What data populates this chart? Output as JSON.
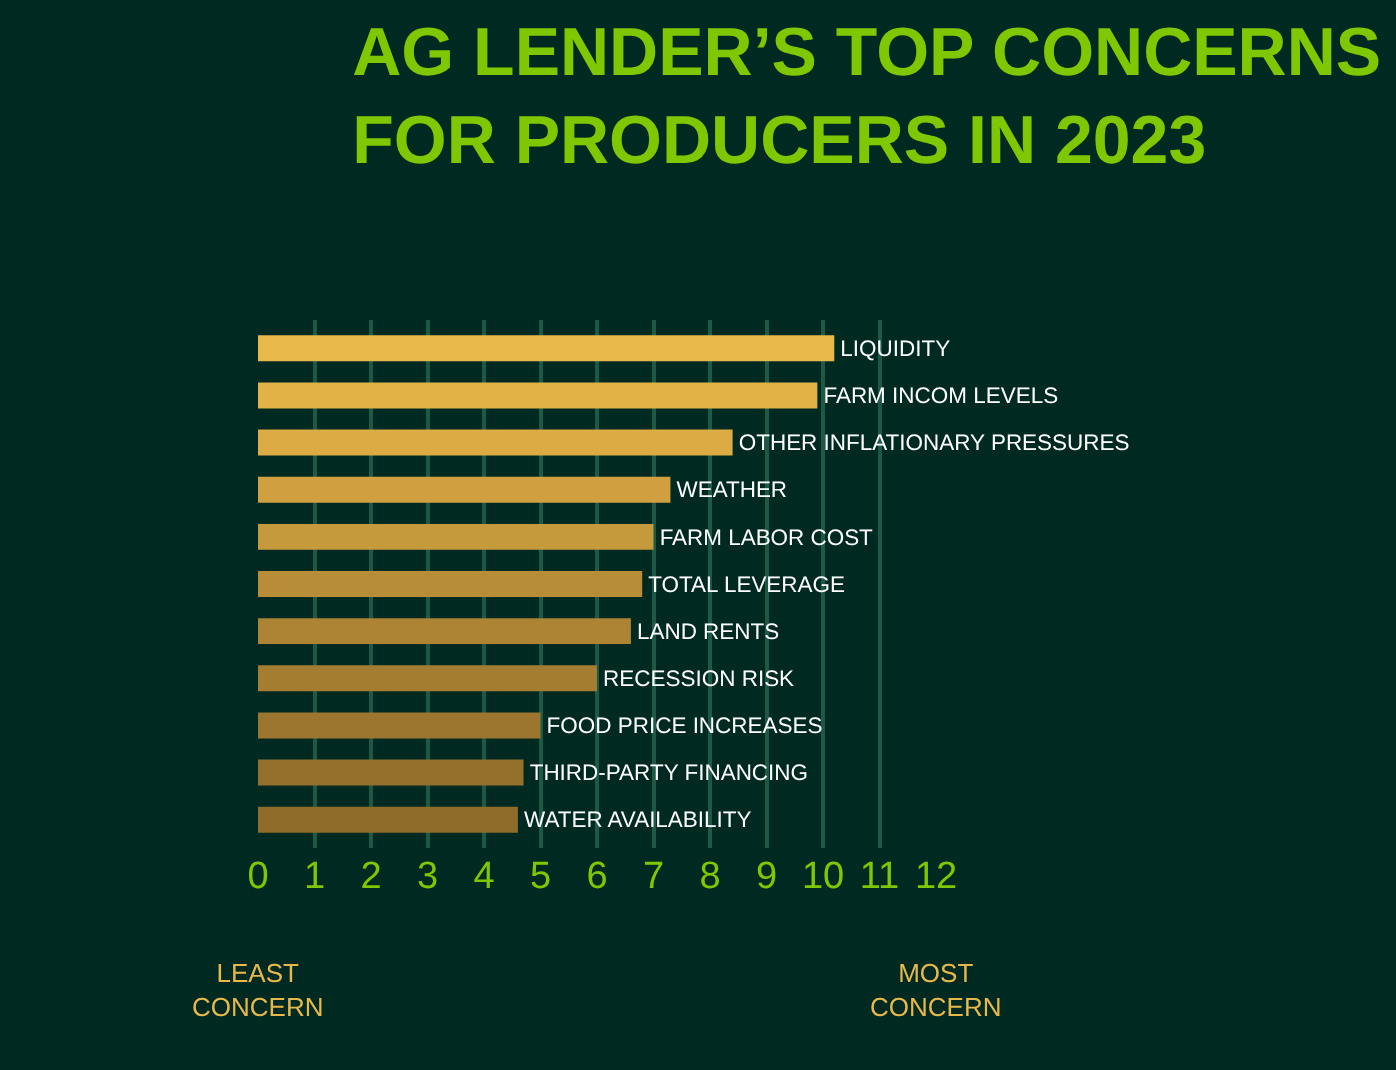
{
  "chart_data": {
    "type": "bar",
    "orientation": "horizontal",
    "title": "AG LENDER’S TOP CONCERNS\nFOR PRODUCERS IN 2023",
    "categories": [
      "LIQUIDITY",
      "FARM INCOM LEVELS",
      "OTHER INFLATIONARY PRESSURES",
      "WEATHER",
      "FARM LABOR COST",
      "TOTAL LEVERAGE",
      "LAND RENTS",
      "RECESSION RISK",
      "FOOD PRICE INCREASES",
      "THIRD-PARTY FINANCING",
      "WATER AVAILABILITY"
    ],
    "values": [
      10.2,
      9.9,
      8.4,
      7.3,
      7.0,
      6.8,
      6.6,
      6.0,
      5.0,
      4.7,
      4.6
    ],
    "colors": [
      "#e8b84a",
      "#e2b247",
      "#dcab44",
      "#d0a040",
      "#c49a3c",
      "#b78d38",
      "#ad8434",
      "#a57d31",
      "#9c762e",
      "#94702c",
      "#8f6c2a"
    ],
    "xlim": [
      0,
      12
    ],
    "xticks": [
      0,
      1,
      2,
      3,
      4,
      5,
      6,
      7,
      8,
      9,
      10,
      11,
      12
    ],
    "grid": "x",
    "tick_labels": "x",
    "annotations": [
      "LEAST\nCONCERN",
      "MOST\nCONCERN"
    ]
  }
}
